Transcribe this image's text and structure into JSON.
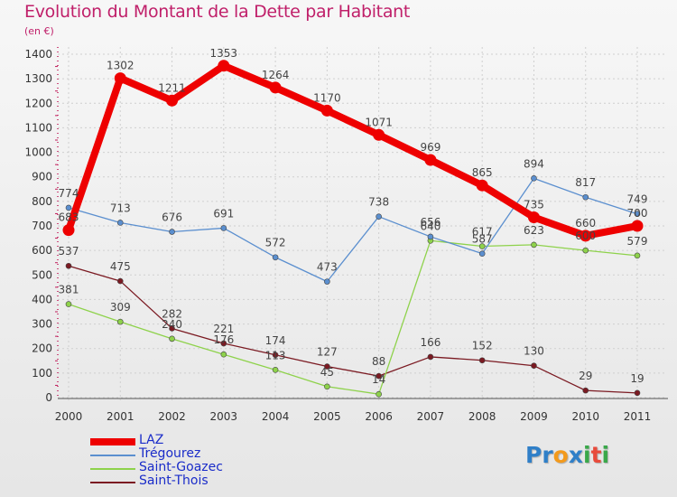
{
  "chart_data": {
    "type": "line",
    "title": "Evolution du Montant de la Dette par Habitant",
    "subtitle": "(en €)",
    "categories": [
      "2000",
      "2001",
      "2002",
      "2003",
      "2004",
      "2005",
      "2006",
      "2007",
      "2008",
      "2009",
      "2010",
      "2011"
    ],
    "ylim": [
      0,
      1400
    ],
    "yticks": [
      "0",
      "100",
      "200",
      "300",
      "400",
      "500",
      "600",
      "700",
      "800",
      "900",
      "1000",
      "1100",
      "1200",
      "1300",
      "1400"
    ],
    "grid": true,
    "legend_position": "bottom-left",
    "series": [
      {
        "name": "LAZ",
        "color": "#ee0000",
        "values": [
          683,
          1302,
          1211,
          1353,
          1264,
          1170,
          1071,
          969,
          865,
          735,
          660,
          700
        ],
        "labels": [
          "683",
          "1302",
          "1211",
          "1353",
          "1264",
          "1170",
          "1071",
          "969",
          "865",
          "735",
          "660",
          "700"
        ]
      },
      {
        "name": "Trégourez",
        "color": "#5b8fcf",
        "values": [
          774,
          713,
          676,
          691,
          572,
          473,
          738,
          656,
          587,
          894,
          817,
          749
        ],
        "labels": [
          "774",
          "713",
          "676",
          "691",
          "572",
          "473",
          "738",
          "656",
          "587",
          "894",
          "817",
          "749"
        ]
      },
      {
        "name": "Saint-Goazec",
        "color": "#8ed24b",
        "values": [
          381,
          309,
          240,
          176,
          113,
          45,
          14,
          640,
          617,
          623,
          600,
          579
        ],
        "labels": [
          "381",
          "309",
          "240",
          "176",
          "113",
          "45",
          "14",
          "640",
          "617",
          "623",
          "600",
          "579"
        ]
      },
      {
        "name": "Saint-Thois",
        "color": "#7b1a22",
        "values": [
          537,
          475,
          282,
          221,
          174,
          127,
          88,
          166,
          152,
          130,
          29,
          19
        ],
        "labels": [
          "537",
          "475",
          "282",
          "221",
          "174",
          "127",
          "88",
          "166",
          "152",
          "130",
          "29",
          "19"
        ]
      }
    ]
  },
  "brand": {
    "letters": [
      {
        "ch": "P",
        "color": "#2f7fc8"
      },
      {
        "ch": "r",
        "color": "#2f7fc8"
      },
      {
        "ch": "o",
        "color": "#f39a1c"
      },
      {
        "ch": "x",
        "color": "#2f7fc8"
      },
      {
        "ch": "i",
        "color": "#3aa84a"
      },
      {
        "ch": "t",
        "color": "#e84b3c"
      },
      {
        "ch": "i",
        "color": "#3aa84a"
      }
    ]
  }
}
